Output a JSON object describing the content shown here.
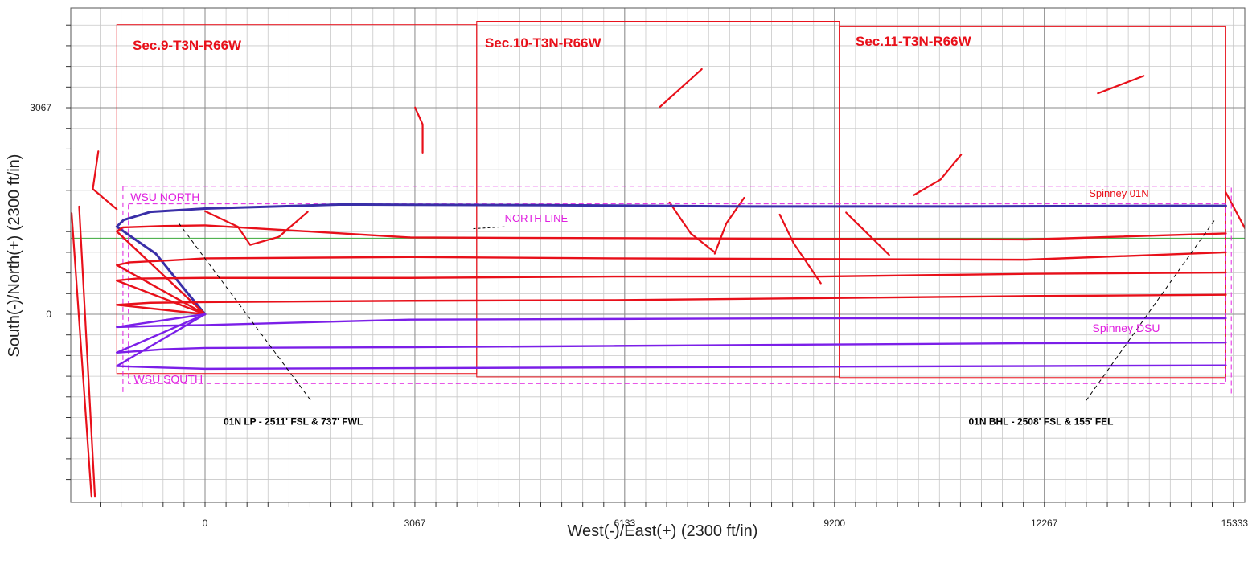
{
  "chart_data": {
    "type": "line",
    "title": "",
    "xlabel": "West(-)/East(+)  (2300  ft/in)",
    "ylabel": "South(-)/North(+)  (2300  ft/in)",
    "xlim": [
      -1840,
      15333
    ],
    "ylim": [
      -2500,
      4600
    ],
    "x_ticks": [
      0,
      3067,
      6133,
      9200,
      12267,
      15333
    ],
    "x_tick_labels": [
      "0",
      "3067",
      "6133",
      "9200",
      "12267",
      "15333"
    ],
    "y_ticks": [
      0,
      3067
    ],
    "y_tick_labels": [
      "0",
      "3067"
    ],
    "grid": true,
    "grid_minor_step": 306.7,
    "sections": [
      {
        "label": "Sec.9-T3N-R66W",
        "x_range": [
          -1290,
          3970
        ],
        "y_range": [
          -880,
          4300
        ]
      },
      {
        "label": "Sec.10-T3N-R66W",
        "x_range": [
          3970,
          9270
        ],
        "y_range": [
          -930,
          4350
        ]
      },
      {
        "label": "Sec.11-T3N-R66W",
        "x_range": [
          9270,
          14920
        ],
        "y_range": [
          -940,
          4280
        ]
      }
    ],
    "boundary_labels": [
      {
        "text": "WSU NORTH",
        "x": -1090,
        "y": 1680
      },
      {
        "text": "WSU SOUTH",
        "x": -1040,
        "y": -1020
      },
      {
        "text": "NORTH  LINE",
        "x": 4380,
        "y": 1370
      },
      {
        "text": "Spinney  DSU",
        "x": 12970,
        "y": -260
      },
      {
        "text": "Spinney  01N",
        "x": 12920,
        "y": 1740
      }
    ],
    "annotations": [
      {
        "text": "01N LP - 2511' FSL & 737' FWL",
        "x": 270,
        "y": -1640
      },
      {
        "text": "01N BHL - 2508' FSL & 155' FEL",
        "x": 11160,
        "y": -1640
      }
    ],
    "series": [
      {
        "name": "Spinney 01N",
        "color": "#3a2fa8",
        "x": [
          0,
          -300,
          -720,
          -1290,
          -1190,
          -800,
          0,
          2000,
          5000,
          8000,
          11000,
          14060,
          14920
        ],
        "y": [
          0,
          370,
          900,
          1300,
          1400,
          1520,
          1570,
          1630,
          1620,
          1600,
          1600,
          1610,
          1610
        ]
      },
      {
        "name": "",
        "color": "#e8101a",
        "x": [
          0,
          -1290,
          -1200,
          -600,
          0,
          3000,
          6000,
          9000,
          12000,
          14920
        ],
        "y": [
          0,
          1230,
          1290,
          1310,
          1320,
          1140,
          1130,
          1120,
          1110,
          1200
        ]
      },
      {
        "name": "",
        "color": "#e8101a",
        "x": [
          0,
          -1290,
          -1100,
          -500,
          0,
          3000,
          6000,
          9000,
          12000,
          14920
        ],
        "y": [
          0,
          730,
          770,
          800,
          830,
          850,
          830,
          820,
          810,
          920
        ]
      },
      {
        "name": "",
        "color": "#e8101a",
        "x": [
          0,
          -1290,
          -1000,
          0,
          3000,
          6000,
          9000,
          12000,
          14920
        ],
        "y": [
          0,
          500,
          530,
          540,
          540,
          560,
          560,
          600,
          620
        ]
      },
      {
        "name": "",
        "color": "#e8101a",
        "x": [
          0,
          -1290,
          -800,
          0,
          3000,
          6000,
          9000,
          12000,
          14920
        ],
        "y": [
          0,
          140,
          170,
          180,
          200,
          210,
          240,
          270,
          290
        ]
      },
      {
        "name": "Spinney DSU",
        "color": "#7b1fe8",
        "x": [
          0,
          -1290,
          -600,
          0,
          3000,
          6000,
          9000,
          12000,
          14920
        ],
        "y": [
          0,
          -190,
          -170,
          -160,
          -80,
          -70,
          -60,
          -60,
          -60
        ]
      },
      {
        "name": "",
        "color": "#7b1fe8",
        "x": [
          0,
          -1290,
          -600,
          0,
          3000,
          6000,
          9000,
          12000,
          14920
        ],
        "y": [
          0,
          -570,
          -520,
          -500,
          -490,
          -470,
          -450,
          -430,
          -420
        ]
      },
      {
        "name": "",
        "color": "#7b1fe8",
        "x": [
          0,
          -1290,
          -700,
          0,
          3000,
          6000,
          9000,
          12000,
          14920
        ],
        "y": [
          0,
          -770,
          -790,
          -810,
          -800,
          -790,
          -780,
          -770,
          -760
        ]
      }
    ],
    "offset_wells": [
      {
        "x": [
          -1290,
          -1640
        ],
        "y": [
          1560,
          1860
        ]
      },
      {
        "x": [
          -1610,
          -1840
        ],
        "y": [
          -2700,
          1600
        ]
      },
      {
        "x": [
          -1640,
          -1560
        ],
        "y": [
          1860,
          2420
        ]
      },
      {
        "x": [
          -1660,
          -1950
        ],
        "y": [
          -2700,
          1500
        ]
      },
      {
        "x": [
          3070,
          3180,
          3180
        ],
        "y": [
          3070,
          2820,
          2400
        ]
      },
      {
        "x": [
          6650,
          7260
        ],
        "y": [
          3080,
          3640
        ]
      },
      {
        "x": [
          6790,
          7100,
          7450
        ],
        "y": [
          1660,
          1200,
          920
        ]
      },
      {
        "x": [
          7450,
          7620,
          7880
        ],
        "y": [
          900,
          1350,
          1730
        ]
      },
      {
        "x": [
          0,
          480,
          660,
          1080,
          1500
        ],
        "y": [
          1530,
          1300,
          1030,
          1150,
          1520
        ]
      },
      {
        "x": [
          8400,
          8600,
          9000
        ],
        "y": [
          1480,
          1060,
          460
        ]
      },
      {
        "x": [
          9370,
          9680,
          10000
        ],
        "y": [
          1510,
          1200,
          880
        ]
      },
      {
        "x": [
          10360,
          10750,
          11050
        ],
        "y": [
          1770,
          2000,
          2370
        ]
      },
      {
        "x": [
          13050,
          13720
        ],
        "y": [
          3280,
          3540
        ]
      },
      {
        "x": [
          14920,
          15250,
          15400
        ],
        "y": [
          1810,
          1180,
          680
        ]
      },
      {
        "x": [
          15460,
          15390,
          15460
        ],
        "y": [
          4600,
          2500,
          -400
        ]
      },
      {
        "x": [
          15840,
          15800,
          15900
        ],
        "y": [
          4600,
          2000,
          -750
        ]
      }
    ]
  }
}
